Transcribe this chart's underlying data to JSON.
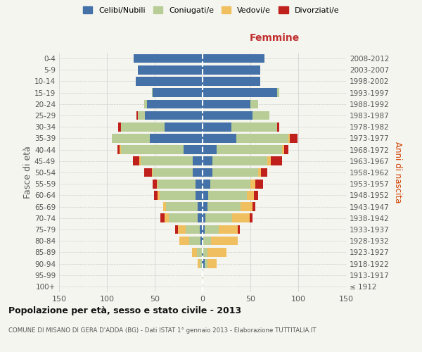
{
  "age_groups": [
    "100+",
    "95-99",
    "90-94",
    "85-89",
    "80-84",
    "75-79",
    "70-74",
    "65-69",
    "60-64",
    "55-59",
    "50-54",
    "45-49",
    "40-44",
    "35-39",
    "30-34",
    "25-29",
    "20-24",
    "15-19",
    "10-14",
    "5-9",
    "0-4"
  ],
  "birth_years": [
    "≤ 1912",
    "1913-1917",
    "1918-1922",
    "1923-1927",
    "1928-1932",
    "1933-1937",
    "1938-1942",
    "1943-1947",
    "1948-1952",
    "1953-1957",
    "1958-1962",
    "1963-1967",
    "1968-1972",
    "1973-1977",
    "1978-1982",
    "1983-1987",
    "1988-1992",
    "1993-1997",
    "1998-2002",
    "2003-2007",
    "2008-2012"
  ],
  "maschi": {
    "celibi": [
      0,
      0,
      1,
      1,
      2,
      3,
      5,
      5,
      7,
      7,
      10,
      10,
      20,
      55,
      40,
      60,
      58,
      52,
      70,
      68,
      72
    ],
    "coniugati": [
      0,
      0,
      2,
      5,
      12,
      15,
      30,
      33,
      38,
      40,
      42,
      55,
      65,
      40,
      45,
      8,
      3,
      1,
      0,
      0,
      0
    ],
    "vedovi": [
      0,
      0,
      2,
      5,
      10,
      8,
      5,
      3,
      2,
      1,
      1,
      1,
      2,
      0,
      0,
      0,
      0,
      0,
      0,
      0,
      0
    ],
    "divorziati": [
      0,
      0,
      0,
      0,
      0,
      3,
      4,
      0,
      4,
      4,
      8,
      7,
      2,
      0,
      3,
      1,
      0,
      0,
      0,
      0,
      0
    ]
  },
  "femmine": {
    "nubili": [
      0,
      0,
      2,
      1,
      1,
      2,
      3,
      5,
      6,
      8,
      10,
      10,
      15,
      35,
      30,
      52,
      50,
      78,
      60,
      60,
      65
    ],
    "coniugate": [
      0,
      1,
      3,
      4,
      8,
      15,
      28,
      35,
      40,
      42,
      48,
      58,
      68,
      55,
      48,
      18,
      8,
      2,
      0,
      0,
      0
    ],
    "vedove": [
      0,
      0,
      10,
      20,
      28,
      20,
      18,
      12,
      8,
      5,
      3,
      3,
      2,
      1,
      0,
      0,
      0,
      0,
      0,
      0,
      0
    ],
    "divorziate": [
      0,
      0,
      0,
      0,
      0,
      2,
      3,
      3,
      4,
      8,
      7,
      12,
      5,
      8,
      2,
      0,
      0,
      0,
      0,
      0,
      0
    ]
  },
  "colors": {
    "celibi_nubili": "#4472a8",
    "coniugati": "#b8cc96",
    "vedovi": "#f0c060",
    "divorziati": "#c0201c"
  },
  "xlim": 150,
  "title": "Popolazione per età, sesso e stato civile - 2013",
  "subtitle": "COMUNE DI MISANO DI GERA D'ADDA (BG) - Dati ISTAT 1° gennaio 2013 - Elaborazione TUTTITALIA.IT",
  "ylabel_left": "Fasce di età",
  "ylabel_right": "Anni di nascita",
  "bg_color": "#f5f5f0",
  "grid_color": "#cccccc"
}
